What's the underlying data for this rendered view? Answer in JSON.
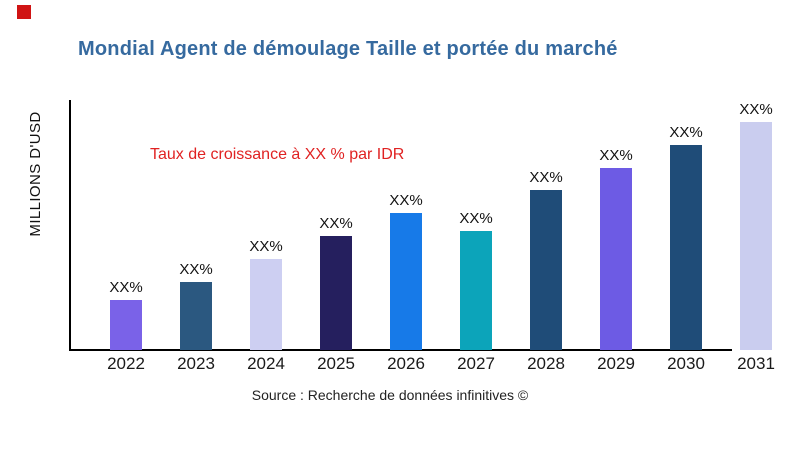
{
  "brand": {
    "logo_color": "#D01414"
  },
  "title": {
    "text": "Mondial Agent de démoulage Taille et portée du marché",
    "color": "#366A9F"
  },
  "annotation": {
    "text": "Taux de croissance à XX % par IDR",
    "color": "#E02222"
  },
  "y_axis": {
    "label": "MILLIONS D'USD"
  },
  "source": {
    "text": "Source : Recherche de données infinitives ©"
  },
  "chart_data": {
    "type": "bar",
    "title": "Mondial Agent de démoulage Taille et portée du marché",
    "xlabel": "",
    "ylabel": "MILLIONS D'USD",
    "categories": [
      "2022",
      "2023",
      "2024",
      "2025",
      "2026",
      "2027",
      "2028",
      "2029",
      "2030",
      "2031"
    ],
    "values": [
      22,
      30,
      40,
      50,
      60,
      52,
      70,
      80,
      90,
      100
    ],
    "values_are_relative_estimates": true,
    "value_labels": [
      "XX%",
      "XX%",
      "XX%",
      "XX%",
      "XX%",
      "XX%",
      "XX%",
      "XX%",
      "XX%",
      "XX%"
    ],
    "colors": [
      "#7A62E8",
      "#2B5880",
      "#CDCFF2",
      "#251F5E",
      "#177AE8",
      "#0CA4BA",
      "#1F4C78",
      "#6D5BE4",
      "#1F4C78",
      "#CACDEF"
    ],
    "ylim": [
      0,
      100
    ],
    "grid": false,
    "legend": false
  }
}
